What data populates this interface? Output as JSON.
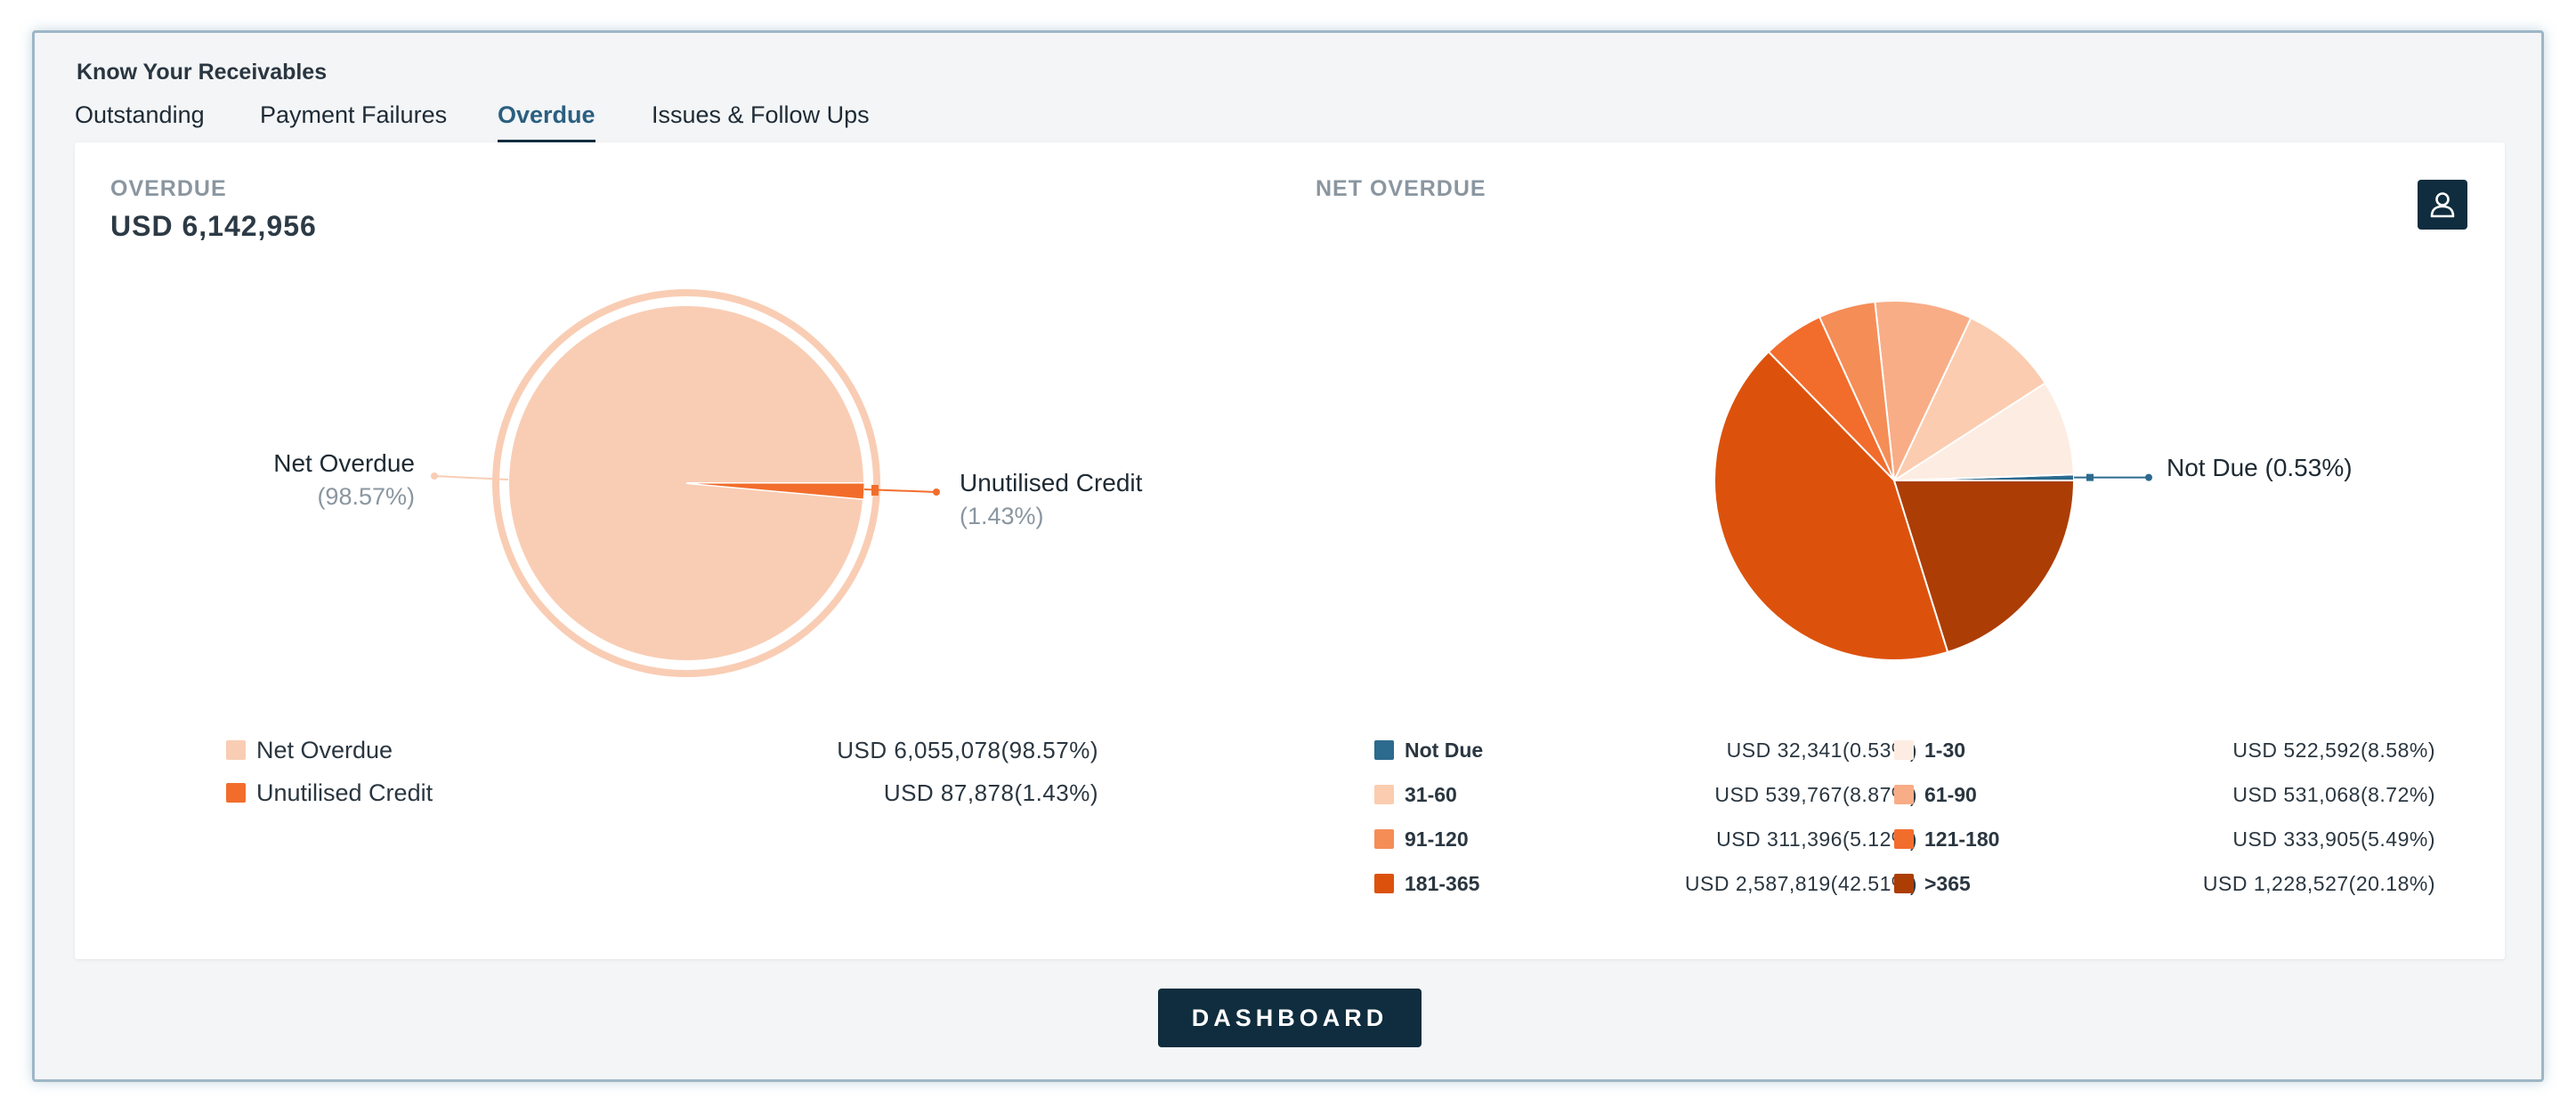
{
  "app": {
    "title": "Know Your Receivables"
  },
  "tabs": [
    {
      "label": "Outstanding",
      "active": false
    },
    {
      "label": "Payment Failures",
      "active": false
    },
    {
      "label": "Overdue",
      "active": true
    },
    {
      "label": "Issues & Follow Ups",
      "active": false
    }
  ],
  "overdue": {
    "label": "OVERDUE",
    "value": "USD 6,142,956"
  },
  "net_overdue": {
    "label": "NET OVERDUE"
  },
  "toolbar": {
    "user_icon": "user-icon"
  },
  "chart_data": [
    {
      "type": "pie",
      "title": "",
      "categories": [
        "Net Overdue",
        "Unutilised Credit"
      ],
      "values": [
        6055078,
        87878
      ],
      "percentages": [
        98.57,
        1.43
      ],
      "colors": [
        "#f9cdb4",
        "#f26d2b"
      ],
      "callouts": [
        {
          "name": "Net Overdue",
          "pct": "(98.57%)"
        },
        {
          "name": "Unutilised Credit",
          "pct": "(1.43%)"
        }
      ],
      "legend": [
        {
          "name": "Net Overdue",
          "value": "USD 6,055,078(98.57%)",
          "color": "#f9cdb4"
        },
        {
          "name": "Unutilised Credit",
          "value": "USD 87,878(1.43%)",
          "color": "#f26d2b"
        }
      ]
    },
    {
      "type": "pie",
      "title": "",
      "categories": [
        "Not Due",
        "1-30",
        "31-60",
        "61-90",
        "91-120",
        "121-180",
        "181-365",
        ">365"
      ],
      "values": [
        32341,
        522592,
        539767,
        531068,
        311396,
        333905,
        2587819,
        1228527
      ],
      "percentages": [
        0.53,
        8.58,
        8.87,
        8.72,
        5.12,
        5.49,
        42.51,
        20.18
      ],
      "colors": [
        "#2c6a8e",
        "#fdece2",
        "#fbccb0",
        "#f8ad86",
        "#f58d57",
        "#f26c2c",
        "#dc520d",
        "#ac3d05"
      ],
      "callout": "Not Due (0.53%)",
      "legend": [
        {
          "name": "Not Due",
          "value": "USD 32,341(0.53%)",
          "color": "#2c6a8e"
        },
        {
          "name": "1-30",
          "value": "USD 522,592(8.58%)",
          "color": "#fdece2"
        },
        {
          "name": "31-60",
          "value": "USD 539,767(8.87%)",
          "color": "#fbccb0"
        },
        {
          "name": "61-90",
          "value": "USD 531,068(8.72%)",
          "color": "#f8ad86"
        },
        {
          "name": "91-120",
          "value": "USD 311,396(5.12%)",
          "color": "#f58d57"
        },
        {
          "name": "121-180",
          "value": "USD 333,905(5.49%)",
          "color": "#f26c2c"
        },
        {
          "name": "181-365",
          "value": "USD 2,587,819(42.51%)",
          "color": "#dc520d"
        },
        {
          "name": ">365",
          "value": "USD 1,228,527(20.18%)",
          "color": "#ac3d05"
        }
      ]
    }
  ],
  "footer": {
    "dashboard_label": "DASHBOARD"
  }
}
